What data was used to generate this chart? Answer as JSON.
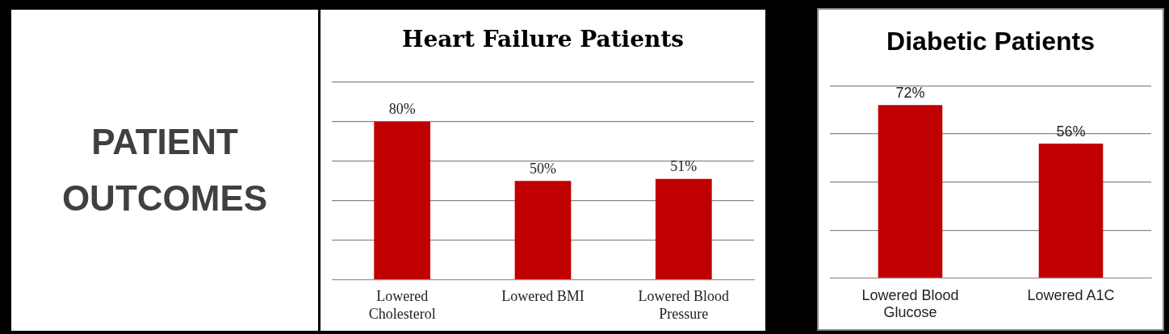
{
  "chart_data": [
    {
      "type": "other",
      "title": "PATIENT OUTCOMES"
    },
    {
      "type": "bar",
      "title": "Heart Failure Patients",
      "categories": [
        "Lowered Cholesterol",
        "Lowered BMI",
        "Lowered Blood Pressure"
      ],
      "values": [
        80,
        50,
        51
      ],
      "value_labels": [
        "80%",
        "50%",
        "51%"
      ],
      "color": "#c00000",
      "ylim": [
        0,
        100
      ],
      "yticks": [
        {
          "value": 0,
          "label": null
        },
        {
          "value": 20,
          "label": null
        },
        {
          "value": 40,
          "label": null
        },
        {
          "value": 60,
          "label": null
        },
        {
          "value": 80,
          "label": null
        },
        {
          "value": 100,
          "label": null
        }
      ],
      "grid": "y",
      "tick_labels": "x"
    },
    {
      "type": "bar",
      "title": "Diabetic Patients",
      "categories": [
        "Lowered Blood Glucose",
        "Lowered A1C"
      ],
      "values": [
        72,
        56
      ],
      "value_labels": [
        "72%",
        "56%"
      ],
      "color": "#c00000",
      "ylim": [
        0,
        80
      ],
      "yticks": [
        {
          "value": 0,
          "label": null
        },
        {
          "value": 20,
          "label": null
        },
        {
          "value": 40,
          "label": null
        },
        {
          "value": 60,
          "label": null
        },
        {
          "value": 80,
          "label": null
        }
      ],
      "grid": "y",
      "tick_labels": "x"
    }
  ]
}
